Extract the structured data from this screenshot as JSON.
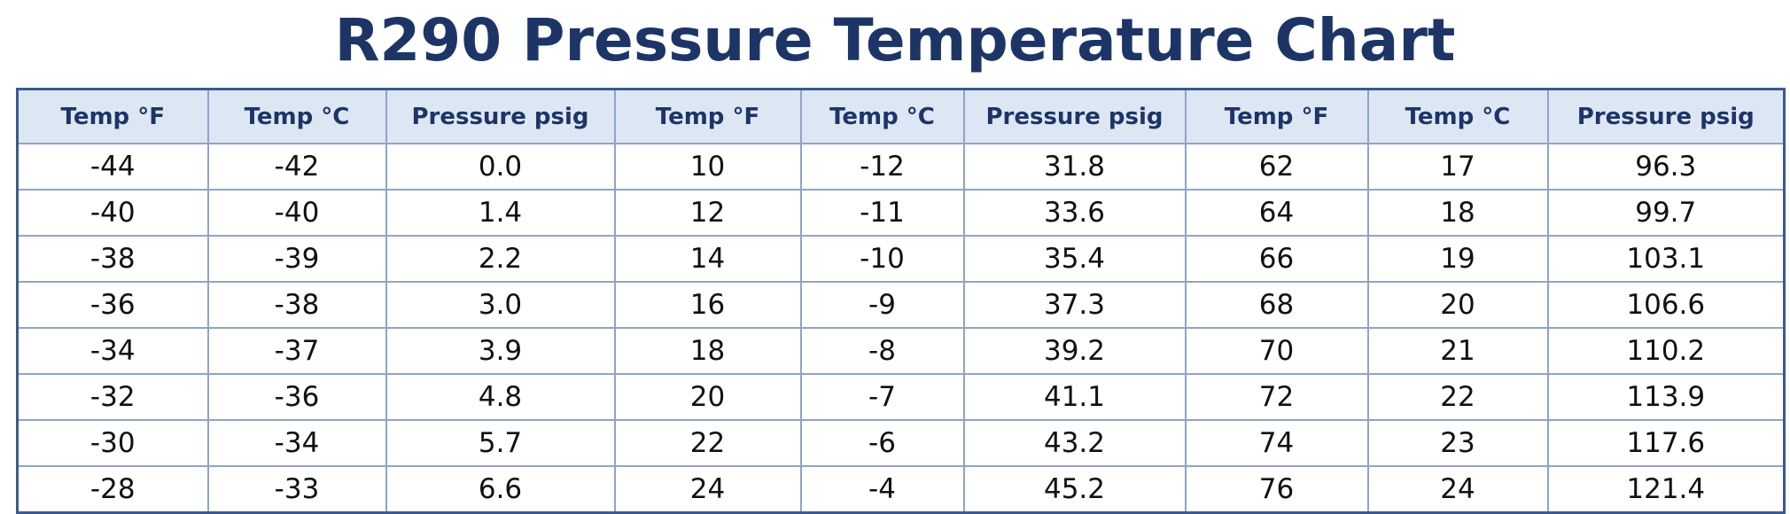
{
  "title": "R290 Pressure Temperature Chart",
  "table": {
    "header": [
      "Temp °F",
      "Temp °C",
      "Pressure psig",
      "Temp °F",
      "Temp °C",
      "Pressure psig",
      "Temp °F",
      "Temp °C",
      "Pressure psig"
    ],
    "rows": [
      [
        "-44",
        "-42",
        "0.0",
        "10",
        "-12",
        "31.8",
        "62",
        "17",
        "96.3"
      ],
      [
        "-40",
        "-40",
        "1.4",
        "12",
        "-11",
        "33.6",
        "64",
        "18",
        "99.7"
      ],
      [
        "-38",
        "-39",
        "2.2",
        "14",
        "-10",
        "35.4",
        "66",
        "19",
        "103.1"
      ],
      [
        "-36",
        "-38",
        "3.0",
        "16",
        "-9",
        "37.3",
        "68",
        "20",
        "106.6"
      ],
      [
        "-34",
        "-37",
        "3.9",
        "18",
        "-8",
        "39.2",
        "70",
        "21",
        "110.2"
      ],
      [
        "-32",
        "-36",
        "4.8",
        "20",
        "-7",
        "41.1",
        "72",
        "22",
        "113.9"
      ],
      [
        "-30",
        "-34",
        "5.7",
        "22",
        "-6",
        "43.2",
        "74",
        "23",
        "117.6"
      ],
      [
        "-28",
        "-33",
        "6.6",
        "24",
        "-4",
        "45.2",
        "76",
        "24",
        "121.4"
      ]
    ]
  }
}
